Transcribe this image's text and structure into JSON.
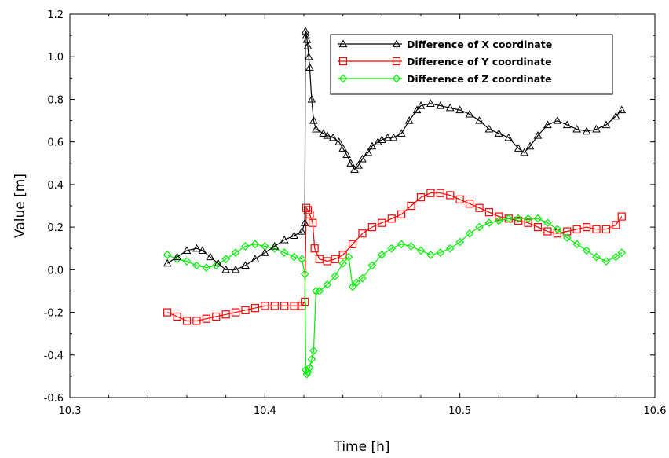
{
  "chart_data": {
    "type": "line",
    "title": "",
    "xlabel": "Time [h]",
    "ylabel": "Value [m]",
    "xlim": [
      10.3,
      10.6
    ],
    "ylim": [
      -0.6,
      1.2
    ],
    "xticks": [
      "10.3",
      "10.4",
      "10.5",
      "10.6"
    ],
    "yticks": [
      "-0.6",
      "-0.4",
      "-0.2",
      "0.0",
      "0.2",
      "0.4",
      "0.6",
      "0.8",
      "1.0",
      "1.2"
    ],
    "grid": false,
    "legend_position": "top-right",
    "series": [
      {
        "name": "Difference of X coordinate",
        "color": "#000000",
        "marker": "triangle",
        "x": [
          10.35,
          10.355,
          10.36,
          10.365,
          10.368,
          10.372,
          10.376,
          10.38,
          10.385,
          10.39,
          10.395,
          10.4,
          10.405,
          10.41,
          10.415,
          10.419,
          10.4205,
          10.4208,
          10.4212,
          10.4216,
          10.422,
          10.4225,
          10.423,
          10.424,
          10.425,
          10.4262,
          10.43,
          10.432,
          10.435,
          10.438,
          10.44,
          10.442,
          10.444,
          10.446,
          10.448,
          10.45,
          10.453,
          10.455,
          10.458,
          10.46,
          10.463,
          10.466,
          10.47,
          10.474,
          10.478,
          10.48,
          10.485,
          10.49,
          10.495,
          10.5,
          10.505,
          10.51,
          10.515,
          10.52,
          10.525,
          10.53,
          10.533,
          10.536,
          10.54,
          10.545,
          10.55,
          10.555,
          10.56,
          10.565,
          10.57,
          10.575,
          10.58,
          10.583
        ],
        "y": [
          0.03,
          0.06,
          0.09,
          0.1,
          0.09,
          0.06,
          0.03,
          0.0,
          0.0,
          0.02,
          0.05,
          0.08,
          0.11,
          0.14,
          0.16,
          0.18,
          0.22,
          1.12,
          1.1,
          1.08,
          1.05,
          1.0,
          0.95,
          0.8,
          0.7,
          0.66,
          0.64,
          0.63,
          0.62,
          0.6,
          0.57,
          0.54,
          0.5,
          0.47,
          0.49,
          0.52,
          0.55,
          0.58,
          0.6,
          0.61,
          0.62,
          0.62,
          0.64,
          0.7,
          0.75,
          0.77,
          0.78,
          0.77,
          0.76,
          0.75,
          0.73,
          0.7,
          0.66,
          0.64,
          0.62,
          0.57,
          0.55,
          0.58,
          0.63,
          0.68,
          0.7,
          0.68,
          0.66,
          0.65,
          0.66,
          0.68,
          0.72,
          0.75
        ]
      },
      {
        "name": "Difference of Y coordinate",
        "color": "#ff0000",
        "marker": "square",
        "x": [
          10.35,
          10.355,
          10.36,
          10.365,
          10.37,
          10.375,
          10.38,
          10.385,
          10.39,
          10.395,
          10.4,
          10.405,
          10.41,
          10.415,
          10.419,
          10.4205,
          10.4212,
          10.422,
          10.423,
          10.4245,
          10.4255,
          10.428,
          10.432,
          10.436,
          10.44,
          10.445,
          10.45,
          10.455,
          10.46,
          10.465,
          10.47,
          10.475,
          10.48,
          10.485,
          10.49,
          10.495,
          10.5,
          10.505,
          10.51,
          10.515,
          10.52,
          10.525,
          10.53,
          10.535,
          10.54,
          10.545,
          10.55,
          10.555,
          10.56,
          10.565,
          10.57,
          10.575,
          10.58,
          10.583
        ],
        "y": [
          -0.2,
          -0.22,
          -0.24,
          -0.24,
          -0.23,
          -0.22,
          -0.21,
          -0.2,
          -0.19,
          -0.18,
          -0.17,
          -0.17,
          -0.17,
          -0.17,
          -0.17,
          -0.15,
          0.29,
          0.28,
          0.26,
          0.22,
          0.1,
          0.05,
          0.04,
          0.05,
          0.07,
          0.12,
          0.17,
          0.2,
          0.22,
          0.24,
          0.26,
          0.3,
          0.34,
          0.36,
          0.36,
          0.35,
          0.33,
          0.31,
          0.29,
          0.27,
          0.25,
          0.24,
          0.23,
          0.22,
          0.2,
          0.18,
          0.17,
          0.18,
          0.19,
          0.2,
          0.19,
          0.19,
          0.21,
          0.25
        ]
      },
      {
        "name": "Difference of Z coordinate",
        "color": "#00ee00",
        "marker": "diamond",
        "x": [
          10.35,
          10.355,
          10.36,
          10.365,
          10.37,
          10.375,
          10.38,
          10.385,
          10.39,
          10.395,
          10.4,
          10.405,
          10.41,
          10.415,
          10.419,
          10.4205,
          10.421,
          10.4215,
          10.422,
          10.423,
          10.424,
          10.425,
          10.4262,
          10.428,
          10.432,
          10.436,
          10.44,
          10.443,
          10.445,
          10.447,
          10.45,
          10.455,
          10.46,
          10.465,
          10.47,
          10.475,
          10.48,
          10.485,
          10.49,
          10.495,
          10.5,
          10.505,
          10.51,
          10.515,
          10.52,
          10.525,
          10.53,
          10.535,
          10.54,
          10.545,
          10.55,
          10.555,
          10.56,
          10.565,
          10.57,
          10.575,
          10.58,
          10.583
        ],
        "y": [
          0.07,
          0.05,
          0.04,
          0.02,
          0.01,
          0.02,
          0.05,
          0.08,
          0.11,
          0.12,
          0.11,
          0.1,
          0.08,
          0.06,
          0.05,
          -0.02,
          -0.47,
          -0.49,
          -0.48,
          -0.46,
          -0.42,
          -0.38,
          -0.1,
          -0.1,
          -0.07,
          -0.03,
          0.03,
          0.06,
          -0.08,
          -0.06,
          -0.04,
          0.02,
          0.07,
          0.1,
          0.12,
          0.11,
          0.09,
          0.07,
          0.08,
          0.1,
          0.13,
          0.17,
          0.2,
          0.22,
          0.23,
          0.24,
          0.24,
          0.24,
          0.24,
          0.22,
          0.19,
          0.15,
          0.12,
          0.09,
          0.06,
          0.04,
          0.06,
          0.08
        ]
      }
    ]
  }
}
